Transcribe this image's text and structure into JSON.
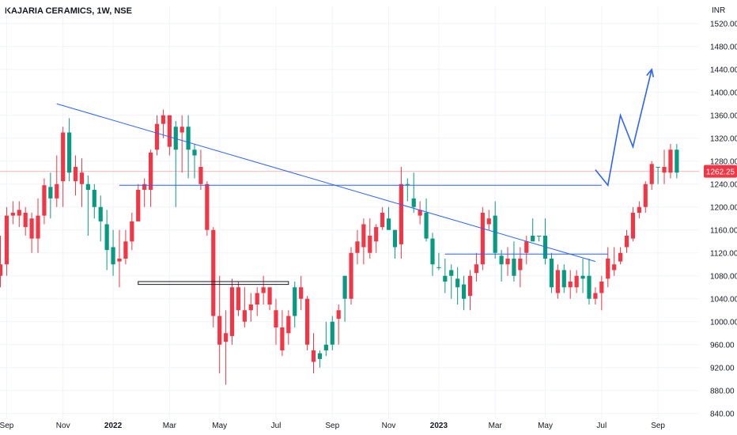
{
  "header": {
    "title": "KAJARIA CERAMICS, 1W, NSE",
    "currency": "INR"
  },
  "price_tag": {
    "label": "1262.25",
    "color": "#f23645"
  },
  "colors": {
    "up": "#089981",
    "down": "#f23645",
    "drawing": "#2962ff",
    "grid": "#f0f3fa",
    "axis_text": "#131722",
    "price_line": "#f23645"
  },
  "chart_data": {
    "type": "candlestick",
    "title": "KAJARIA CERAMICS, 1W, NSE",
    "y_unit": "INR",
    "ylim": [
      830,
      1550
    ],
    "y_ticks": [
      840,
      880,
      920,
      960,
      1000,
      1040,
      1080,
      1120,
      1160,
      1200,
      1240,
      1280,
      1320,
      1360,
      1400,
      1440,
      1480,
      1520
    ],
    "y_tick_labels": [
      "840.00",
      "880.00",
      "920.00",
      "960.00",
      "1000.00",
      "1040.00",
      "1080.00",
      "1120.00",
      "1160.00",
      "1200.00",
      "1240.00",
      "1280.00",
      "1320.00",
      "1360.00",
      "1400.00",
      "1440.00",
      "1480.00",
      "1520.00"
    ],
    "x_ticks": [
      {
        "label": "Sep",
        "i": 1,
        "bold": false
      },
      {
        "label": "Nov",
        "i": 10,
        "bold": false
      },
      {
        "label": "2022",
        "i": 18,
        "bold": true
      },
      {
        "label": "Mar",
        "i": 27,
        "bold": false
      },
      {
        "label": "May",
        "i": 35,
        "bold": false
      },
      {
        "label": "Jul",
        "i": 44,
        "bold": false
      },
      {
        "label": "Sep",
        "i": 53,
        "bold": false
      },
      {
        "label": "Nov",
        "i": 62,
        "bold": false
      },
      {
        "label": "2023",
        "i": 70,
        "bold": true
      },
      {
        "label": "Mar",
        "i": 79,
        "bold": false
      },
      {
        "label": "May",
        "i": 87,
        "bold": false
      },
      {
        "label": "Jul",
        "i": 96,
        "bold": false
      },
      {
        "label": "Sep",
        "i": 105,
        "bold": false
      }
    ],
    "grid": true,
    "last_price": 1262.25,
    "candles": [
      [
        1100,
        1080,
        1150,
        1060
      ],
      [
        1185,
        1100,
        1200,
        1080
      ],
      [
        1190,
        1185,
        1210,
        1170
      ],
      [
        1195,
        1185,
        1210,
        1165
      ],
      [
        1190,
        1165,
        1200,
        1150
      ],
      [
        1180,
        1145,
        1190,
        1120
      ],
      [
        1185,
        1145,
        1215,
        1120
      ],
      [
        1238,
        1185,
        1250,
        1170
      ],
      [
        1215,
        1235,
        1260,
        1180
      ],
      [
        1240,
        1215,
        1290,
        1200
      ],
      [
        1330,
        1245,
        1340,
        1200
      ],
      [
        1260,
        1330,
        1355,
        1245
      ],
      [
        1270,
        1245,
        1290,
        1220
      ],
      [
        1260,
        1240,
        1285,
        1200
      ],
      [
        1230,
        1240,
        1255,
        1150
      ],
      [
        1200,
        1230,
        1240,
        1180
      ],
      [
        1175,
        1200,
        1220,
        1140
      ],
      [
        1125,
        1170,
        1195,
        1090
      ],
      [
        1100,
        1130,
        1160,
        1080
      ],
      [
        1110,
        1105,
        1160,
        1060
      ],
      [
        1140,
        1110,
        1160,
        1100
      ],
      [
        1175,
        1140,
        1190,
        1125
      ],
      [
        1230,
        1175,
        1240,
        1190
      ],
      [
        1240,
        1230,
        1250,
        1200
      ],
      [
        1295,
        1230,
        1300,
        1200
      ],
      [
        1345,
        1300,
        1360,
        1290
      ],
      [
        1360,
        1345,
        1370,
        1320
      ],
      [
        1360,
        1305,
        1360,
        1290
      ],
      [
        1300,
        1340,
        1350,
        1200
      ],
      [
        1340,
        1330,
        1360,
        1260
      ],
      [
        1300,
        1340,
        1360,
        1250
      ],
      [
        1290,
        1300,
        1310,
        1250
      ],
      [
        1270,
        1240,
        1300,
        1230
      ],
      [
        1240,
        1160,
        1245,
        1150
      ],
      [
        1160,
        1010,
        1165,
        990
      ],
      [
        1010,
        960,
        1080,
        910
      ],
      [
        980,
        965,
        1020,
        890
      ],
      [
        1060,
        975,
        1075,
        960
      ],
      [
        1060,
        1020,
        1070,
        1010
      ],
      [
        1020,
        1000,
        1060,
        990
      ],
      [
        1030,
        1020,
        1050,
        1000
      ],
      [
        1050,
        1030,
        1060,
        1010
      ],
      [
        1060,
        1050,
        1080,
        1030
      ],
      [
        1060,
        1030,
        1060,
        1020
      ],
      [
        1020,
        990,
        1040,
        960
      ],
      [
        990,
        950,
        1020,
        940
      ],
      [
        1010,
        980,
        1020,
        960
      ],
      [
        1010,
        1060,
        1070,
        990
      ],
      [
        1060,
        1040,
        1080,
        1020
      ],
      [
        1040,
        960,
        1045,
        950
      ],
      [
        950,
        930,
        980,
        910
      ],
      [
        935,
        945,
        950,
        920
      ],
      [
        950,
        960,
        1000,
        940
      ],
      [
        960,
        1000,
        1010,
        950
      ],
      [
        1020,
        1005,
        1030,
        960
      ],
      [
        1040,
        1080,
        1080,
        1000
      ],
      [
        1120,
        1040,
        1130,
        1030
      ],
      [
        1140,
        1120,
        1160,
        1100
      ],
      [
        1170,
        1130,
        1180,
        1100
      ],
      [
        1150,
        1120,
        1180,
        1110
      ],
      [
        1165,
        1140,
        1170,
        1120
      ],
      [
        1190,
        1165,
        1200,
        1160
      ],
      [
        1160,
        1180,
        1200,
        1160
      ],
      [
        1130,
        1160,
        1160,
        1110
      ],
      [
        1240,
        1135,
        1270,
        1110
      ],
      [
        1240,
        1240,
        1250,
        1210
      ],
      [
        1200,
        1215,
        1260,
        1190
      ],
      [
        1195,
        1185,
        1210,
        1170
      ],
      [
        1145,
        1190,
        1215,
        1140
      ],
      [
        1100,
        1145,
        1155,
        1080
      ],
      [
        1095,
        1095,
        1120,
        1090
      ],
      [
        1070,
        1080,
        1110,
        1050
      ],
      [
        1080,
        1090,
        1100,
        1040
      ],
      [
        1060,
        1075,
        1095,
        1030
      ],
      [
        1040,
        1065,
        1080,
        1020
      ],
      [
        1080,
        1045,
        1090,
        1020
      ],
      [
        1100,
        1085,
        1120,
        1070
      ],
      [
        1190,
        1100,
        1200,
        1090
      ],
      [
        1180,
        1170,
        1195,
        1160
      ],
      [
        1120,
        1185,
        1210,
        1110
      ],
      [
        1100,
        1115,
        1125,
        1070
      ],
      [
        1110,
        1100,
        1130,
        1080
      ],
      [
        1080,
        1110,
        1140,
        1070
      ],
      [
        1110,
        1090,
        1130,
        1060
      ],
      [
        1140,
        1120,
        1150,
        1100
      ],
      [
        1140,
        1150,
        1180,
        1140
      ],
      [
        1150,
        1150,
        1150,
        1140
      ],
      [
        1110,
        1150,
        1180,
        1100
      ],
      [
        1060,
        1110,
        1120,
        1050
      ],
      [
        1090,
        1050,
        1100,
        1040
      ],
      [
        1060,
        1090,
        1100,
        1050
      ],
      [
        1070,
        1060,
        1090,
        1040
      ],
      [
        1080,
        1060,
        1090,
        1050
      ],
      [
        1075,
        1080,
        1110,
        1050
      ],
      [
        1040,
        1080,
        1110,
        1030
      ],
      [
        1050,
        1040,
        1060,
        1030
      ],
      [
        1070,
        1050,
        1080,
        1020
      ],
      [
        1110,
        1075,
        1130,
        1060
      ],
      [
        1100,
        1090,
        1130,
        1080
      ],
      [
        1120,
        1105,
        1130,
        1100
      ],
      [
        1150,
        1130,
        1160,
        1120
      ],
      [
        1190,
        1145,
        1200,
        1140
      ],
      [
        1200,
        1190,
        1210,
        1180
      ],
      [
        1240,
        1200,
        1245,
        1190
      ],
      [
        1275,
        1240,
        1280,
        1230
      ],
      [
        1270,
        1270,
        1270,
        1240
      ],
      [
        1270,
        1260,
        1300,
        1240
      ],
      [
        1300,
        1260,
        1310,
        1250
      ],
      [
        1260,
        1300,
        1310,
        1250
      ]
    ]
  },
  "drawings": {
    "descending_trendline": [
      [
        9,
        1380
      ],
      [
        95,
        1105
      ]
    ],
    "support_line": [
      [
        19,
        1238
      ],
      [
        96,
        1238
      ]
    ],
    "neckline": [
      [
        71,
        1118
      ],
      [
        97,
        1118
      ]
    ],
    "box": {
      "from": [
        22,
        1065
      ],
      "to": [
        46,
        1070
      ]
    },
    "projection_path": [
      [
        95,
        1265
      ],
      [
        97,
        1238
      ],
      [
        99,
        1360
      ],
      [
        101,
        1305
      ],
      [
        104,
        1440
      ]
    ]
  }
}
